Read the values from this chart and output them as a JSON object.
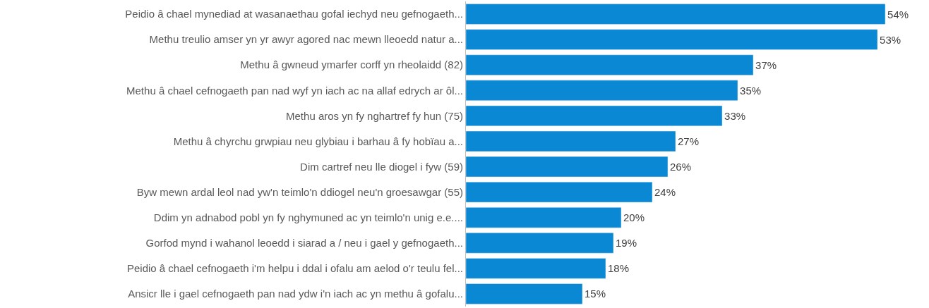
{
  "chart_data": {
    "type": "bar",
    "orientation": "horizontal",
    "color": "#0a88d4",
    "categories": [
      "Peidio â chael mynediad at wasanaethau gofal iechyd neu gefnogaeth...",
      "Methu treulio amser yn yr awyr agored nac mewn lleoedd natur a...",
      "Methu â gwneud ymarfer corff yn rheolaidd (82)",
      "Methu â chael cefnogaeth pan nad wyf yn iach ac na allaf edrych ar ôl...",
      "Methu aros yn fy nghartref fy hun (75)",
      "Methu â chyrchu grwpiau neu glybiau i barhau â fy hobïau a...",
      "Dim cartref neu lle diogel i fyw (59)",
      "Byw mewn ardal leol nad yw'n teimlo'n ddiogel neu'n groesawgar (55)",
      "Ddim yn adnabod pobl yn fy nghymuned ac yn teimlo'n unig e.e....",
      "Gorfod mynd i wahanol leoedd i siarad a / neu i gael y gefnogaeth...",
      "Peidio â chael cefnogaeth i'm helpu i ddal i ofalu am aelod o'r teulu fel...",
      "Ansicr lle i gael cefnogaeth pan nad ydw i'n iach ac yn methu â gofalu..."
    ],
    "values": [
      54,
      53,
      37,
      35,
      33,
      27,
      26,
      24,
      20,
      19,
      18,
      15
    ],
    "value_labels": [
      "54%",
      "53%",
      "37%",
      "35%",
      "33%",
      "27%",
      "26%",
      "24%",
      "20%",
      "19%",
      "18%",
      "15%"
    ]
  }
}
